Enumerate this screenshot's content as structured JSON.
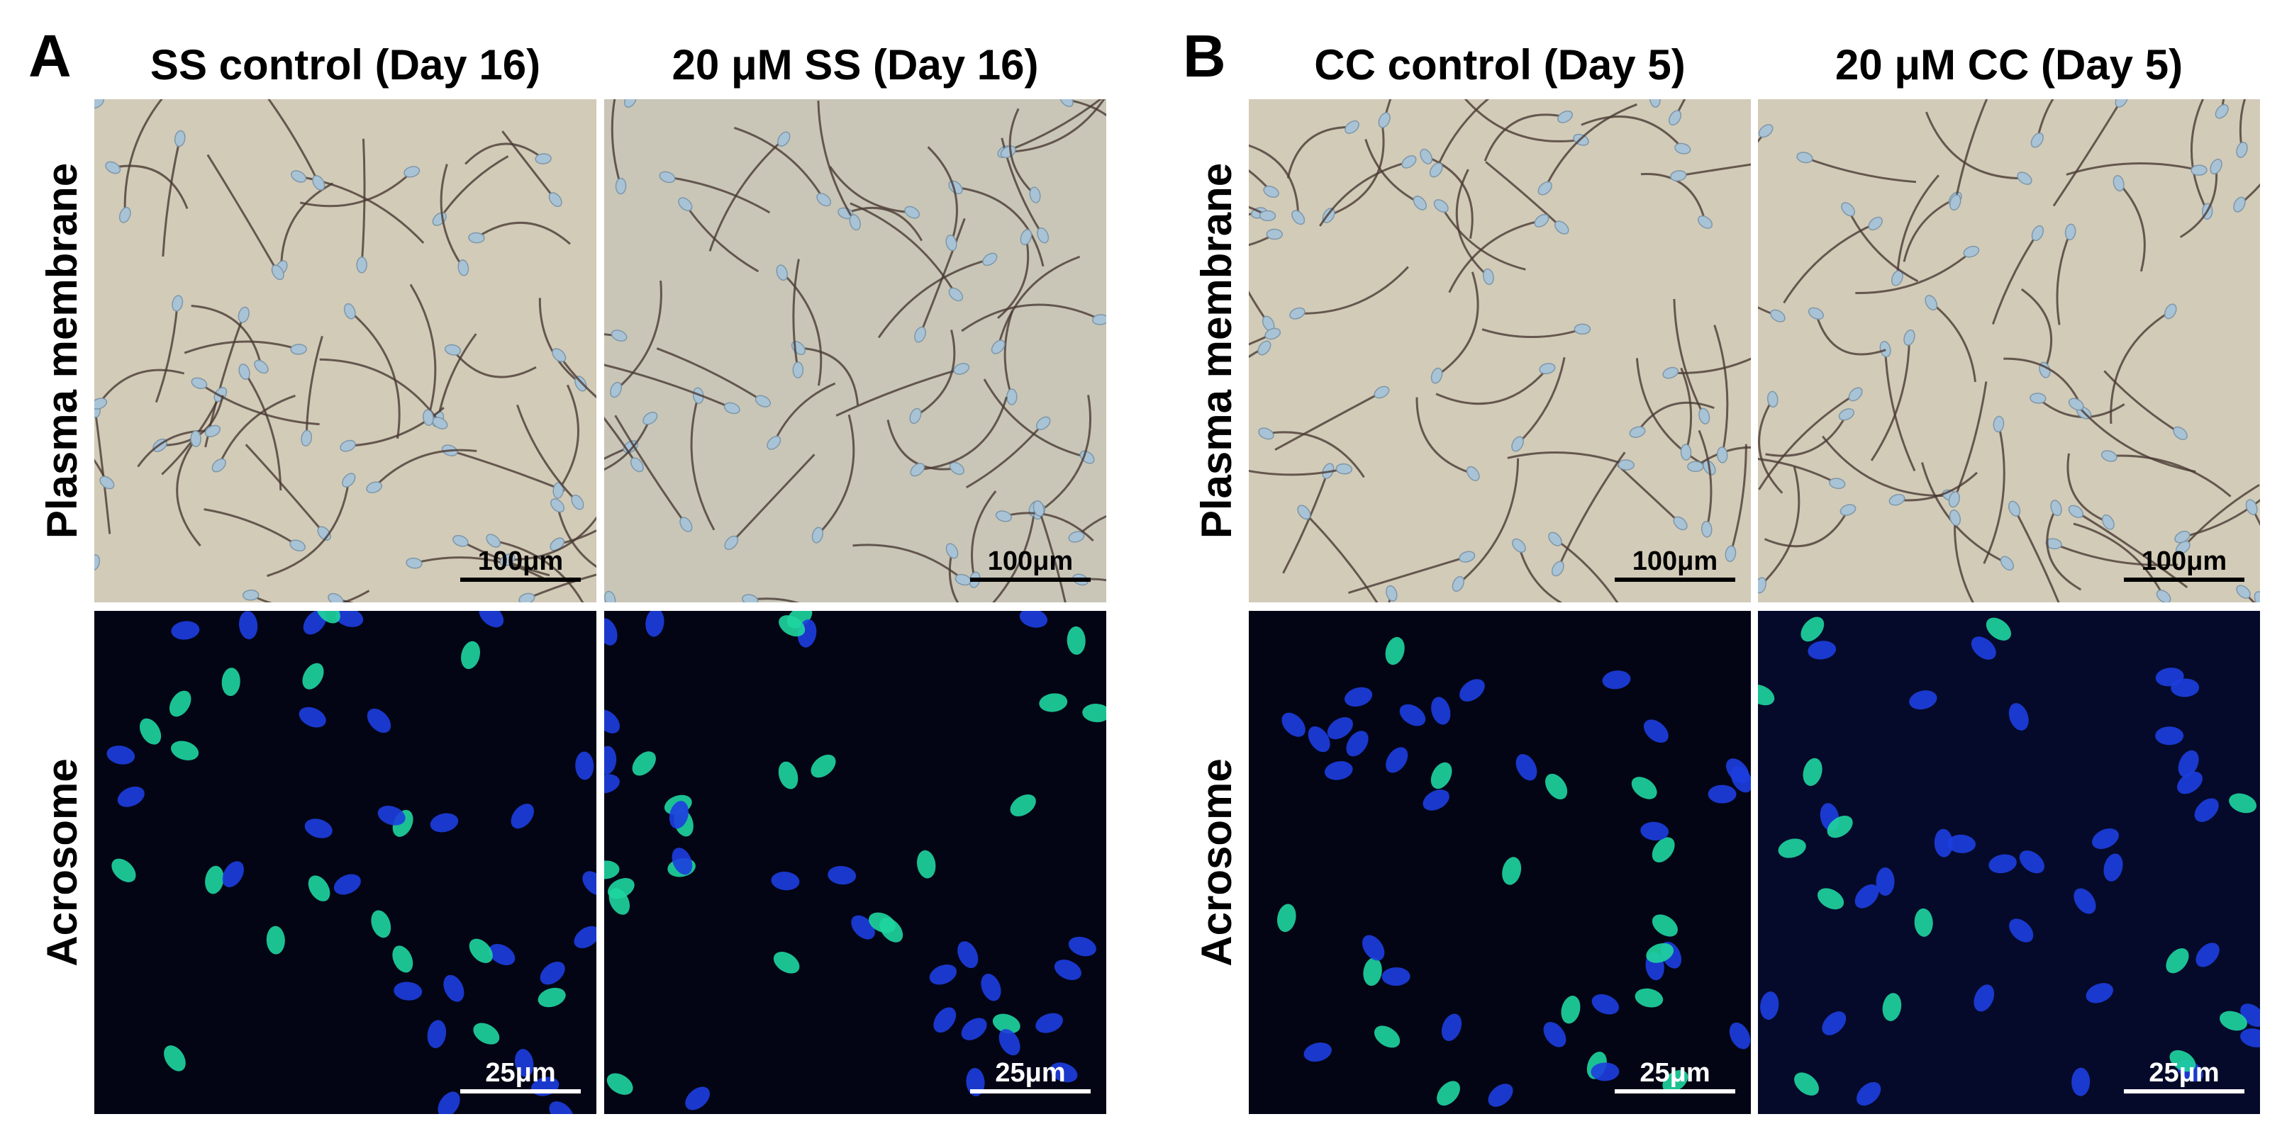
{
  "panels": [
    {
      "label": "A",
      "columns": [
        "SS control (Day 16)",
        "20 μM SS (Day 16)"
      ],
      "rows": [
        "Plasma membrane",
        "Acrosome"
      ],
      "scale_bars": [
        [
          "100μm",
          "100μm"
        ],
        [
          "25μm",
          "25μm"
        ]
      ]
    },
    {
      "label": "B",
      "columns": [
        "CC control (Day 5)",
        "20 μM CC (Day 5)"
      ],
      "rows": [
        "Plasma membrane",
        "Acrosome"
      ],
      "scale_bars": [
        [
          "100μm",
          "100μm"
        ],
        [
          "25μm",
          "25μm"
        ]
      ]
    }
  ]
}
